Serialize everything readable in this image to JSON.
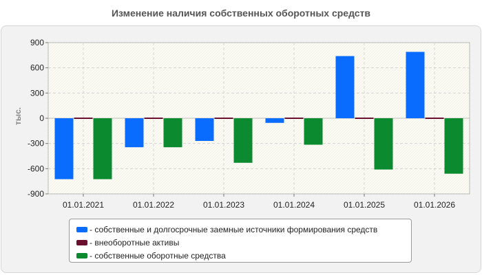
{
  "chart_data": {
    "type": "bar",
    "title": "Изменение наличия собственных оборотных средств",
    "ylabel": "тыс.",
    "xlabel": "",
    "categories": [
      "01.01.2021",
      "01.01.2022",
      "01.01.2023",
      "01.01.2024",
      "01.01.2025",
      "01.01.2026"
    ],
    "ylim": [
      -900,
      900
    ],
    "yticks": [
      900,
      600,
      300,
      0,
      -300,
      -600,
      -900
    ],
    "grid": true,
    "legend_position": "bottom",
    "series": [
      {
        "name": "собственные и долгосрочные заемные источники формирования средств",
        "color": "#0a6cff",
        "values": [
          -725,
          -345,
          -270,
          -55,
          740,
          790
        ]
      },
      {
        "name": "внеоборотные активы",
        "color": "#6b0f2e",
        "values": [
          0,
          0,
          0,
          0,
          0,
          0
        ]
      },
      {
        "name": "собственные оборотные средства",
        "color": "#0c8a2f",
        "values": [
          -725,
          -345,
          -530,
          -315,
          -610,
          -660
        ]
      }
    ]
  }
}
